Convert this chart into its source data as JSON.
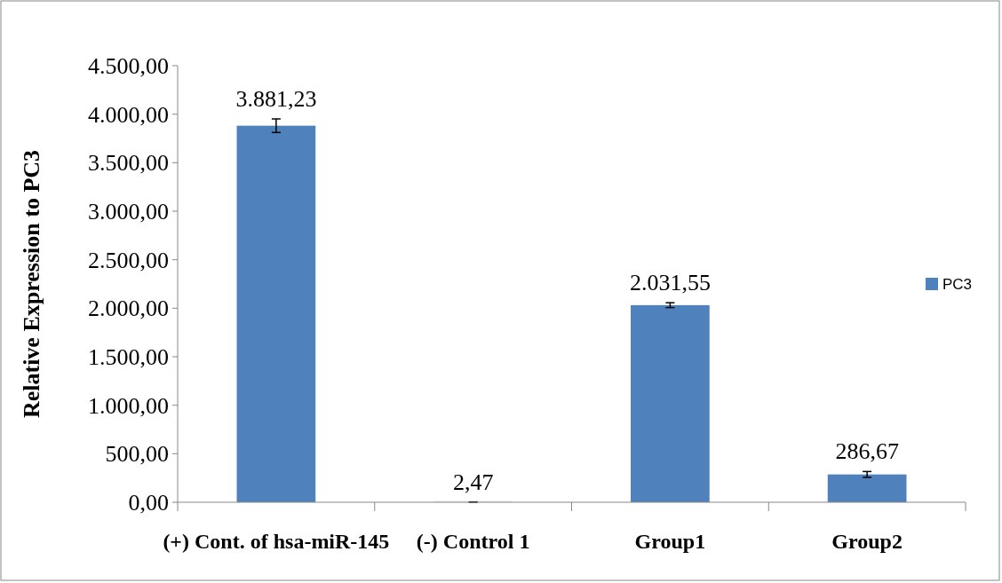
{
  "chart_data": {
    "type": "bar",
    "ylabel": "Relative Expression to PC3",
    "categories": [
      "(+) Cont. of hsa-miR-145",
      "(-) Control 1",
      "Group1",
      "Group2"
    ],
    "series": [
      {
        "name": "PC3",
        "color": "#4f81bd",
        "values": [
          3881.23,
          2.47,
          2031.55,
          286.67
        ],
        "errors": [
          70,
          1,
          25,
          30
        ],
        "value_labels": [
          "3.881,23",
          "2,47",
          "2.031,55",
          "286,67"
        ]
      }
    ],
    "ylim": [
      0,
      4500
    ],
    "yticks": [
      {
        "value": 0,
        "label": "0,00"
      },
      {
        "value": 500,
        "label": "500,00"
      },
      {
        "value": 1000,
        "label": "1.000,00"
      },
      {
        "value": 1500,
        "label": "1.500,00"
      },
      {
        "value": 2000,
        "label": "2.000,00"
      },
      {
        "value": 2500,
        "label": "2.500,00"
      },
      {
        "value": 3000,
        "label": "3.000,00"
      },
      {
        "value": 3500,
        "label": "3.500,00"
      },
      {
        "value": 4000,
        "label": "4.000,00"
      },
      {
        "value": 4500,
        "label": "4.500,00"
      }
    ],
    "legend": "right",
    "grid": false
  }
}
